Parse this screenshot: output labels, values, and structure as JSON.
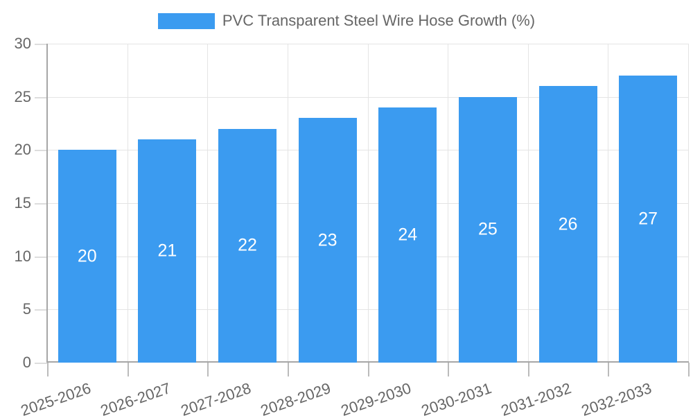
{
  "legend": {
    "position": "top"
  },
  "chart_data": {
    "type": "bar",
    "title": "PVC Transparent Steel Wire Hose Growth (%)",
    "series_name": "PVC Transparent Steel Wire Hose Growth (%)",
    "categories": [
      "2025-2026",
      "2026-2027",
      "2027-2028",
      "2028-2029",
      "2029-2030",
      "2030-2031",
      "2031-2032",
      "2032-2033"
    ],
    "values": [
      20,
      21,
      22,
      23,
      24,
      25,
      26,
      27
    ],
    "xlabel": "",
    "ylabel": "",
    "ylim": [
      0,
      30
    ],
    "yticks": [
      0,
      5,
      10,
      15,
      20,
      25,
      30
    ],
    "grid": true,
    "legend_position": "top",
    "bar_labels_visible": true,
    "colors": {
      "bar": "#3B9BF0",
      "bar_label": "#ffffff",
      "axis_text": "#666666",
      "gridline": "#e4e4e4",
      "axis_line": "#a6a6a6",
      "background": "#ffffff"
    }
  }
}
